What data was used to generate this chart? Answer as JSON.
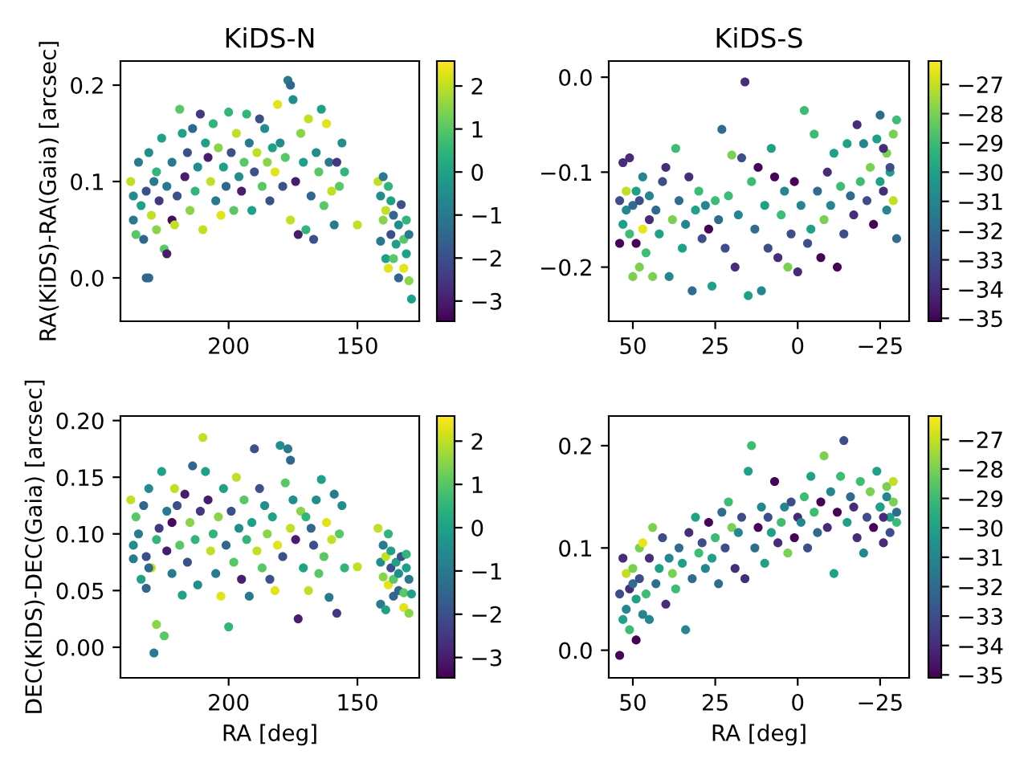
{
  "chart_data": [
    {
      "type": "scatter",
      "title": "KiDS-N",
      "ylabel": "RA(KiDS)-RA(Gaia) [arcsec]",
      "tick_labels": true,
      "xlim": [
        242,
        126
      ],
      "xticks": [
        200,
        150
      ],
      "ylim": [
        -0.045,
        0.225
      ],
      "yticks": [
        {
          "value": 0,
          "label": "0.0"
        },
        0.1,
        0.2
      ],
      "clim": [
        -3.47,
        2.58
      ],
      "cticks": [
        {
          "value": -3,
          "label": "−3"
        },
        {
          "value": -2,
          "label": "−2"
        },
        {
          "value": -1,
          "label": "−1"
        },
        0,
        1,
        2
      ],
      "x": [
        238,
        237,
        237,
        236,
        235,
        234,
        233,
        232,
        231,
        230,
        229,
        228,
        228,
        227,
        226,
        225,
        224,
        224,
        232,
        231,
        222,
        222,
        221,
        220,
        219,
        218,
        217,
        216,
        215,
        214,
        213,
        212,
        211,
        210,
        209,
        208,
        207,
        206,
        205,
        204,
        203,
        202,
        201,
        200,
        199,
        198,
        197,
        196,
        195,
        194,
        193,
        192,
        191,
        190,
        189,
        188,
        187,
        186,
        185,
        184,
        183,
        182,
        181,
        180,
        179,
        178,
        177,
        176,
        176,
        175,
        174,
        173,
        172,
        171,
        170,
        169,
        168,
        167,
        166,
        165,
        164,
        163,
        162,
        161,
        160,
        159,
        158,
        157,
        156,
        155,
        150,
        142,
        141,
        141,
        140,
        140,
        139,
        139,
        138,
        138,
        137,
        137,
        136,
        136,
        135,
        134,
        134,
        133,
        132,
        132,
        131,
        130,
        130,
        129,
        131
      ],
      "values": [
        0.1,
        0.085,
        0.06,
        0.045,
        0.12,
        0.075,
        0.04,
        0.09,
        0.13,
        0.065,
        0.1,
        0.05,
        0.11,
        0.08,
        0.145,
        0.03,
        0.095,
        0.025,
        0.0,
        0.0,
        0.06,
        0.12,
        0.055,
        0.085,
        0.175,
        0.15,
        0.105,
        0.13,
        0.07,
        0.155,
        0.09,
        0.115,
        0.17,
        0.05,
        0.14,
        0.125,
        0.1,
        0.16,
        0.08,
        0.135,
        0.065,
        0.115,
        0.095,
        0.172,
        0.13,
        0.07,
        0.15,
        0.105,
        0.09,
        0.12,
        0.17,
        0.14,
        0.07,
        0.11,
        0.13,
        0.165,
        0.095,
        0.155,
        0.12,
        0.08,
        0.135,
        0.11,
        0.18,
        0.14,
        0.095,
        0.125,
        0.205,
        0.2,
        0.06,
        0.185,
        0.1,
        0.045,
        0.15,
        0.12,
        0.05,
        0.165,
        0.085,
        0.04,
        0.13,
        0.11,
        0.175,
        0.075,
        0.16,
        0.12,
        0.09,
        0.055,
        0.12,
        0.095,
        0.14,
        0.11,
        0.055,
        0.1,
        0.085,
        0.038,
        0.105,
        0.06,
        0.02,
        0.07,
        0.01,
        0.095,
        0.045,
        0.08,
        0.065,
        0.02,
        0.035,
        0.055,
        0.0,
        0.076,
        0.04,
        0.01,
        0.025,
        -0.003,
        0.045,
        -0.022,
        0.06
      ],
      "cvalues": [
        2,
        -0.5,
        -1,
        1,
        -1,
        0,
        -1.5,
        -2,
        -0.5,
        2,
        -1,
        1.5,
        0.5,
        -2.5,
        0,
        1,
        -1,
        -3,
        -1.5,
        -1.5,
        -3.3,
        -1,
        2,
        -2,
        1,
        0,
        -3,
        -2,
        1.5,
        -1.5,
        0.5,
        -0.5,
        -2.5,
        2,
        0,
        -3,
        2,
        0.5,
        -1,
        1.5,
        2.3,
        0,
        -1.5,
        0.5,
        -2,
        1,
        2,
        -0.5,
        -3,
        1,
        0.5,
        -1,
        0,
        -2,
        2,
        -2,
        1,
        -0.5,
        1.5,
        -2,
        0,
        2.3,
        2.3,
        -0.5,
        -2,
        1,
        -1,
        -1.5,
        2,
        -0.5,
        -3,
        -3,
        1.5,
        0,
        0.5,
        2,
        -1.5,
        -2,
        -0.5,
        1,
        0,
        1,
        2.3,
        -1,
        2,
        -1,
        -2.5,
        1,
        -0.5,
        0.5,
        2,
        2,
        -0.5,
        -1,
        -1,
        1.5,
        0,
        2,
        2.3,
        0.5,
        -2,
        0,
        -1.5,
        1,
        0,
        -0.5,
        -1.5,
        -2,
        1,
        2.3,
        0,
        1.5,
        -1,
        0,
        0.5
      ]
    },
    {
      "type": "scatter",
      "title": "KiDS-S",
      "xlim": [
        57.3,
        -33.8
      ],
      "xticks": [
        50,
        25,
        0,
        {
          "value": -25,
          "label": "−25"
        }
      ],
      "ylim": [
        -0.257,
        0.017
      ],
      "yticks": [
        {
          "value": 0,
          "label": "0.0"
        },
        {
          "value": -0.1,
          "label": "−0.1"
        },
        {
          "value": -0.2,
          "label": "−0.2"
        }
      ],
      "clim": [
        -35.1,
        -26.2
      ],
      "cticks": [
        {
          "value": -35,
          "label": "−35"
        },
        {
          "value": -34,
          "label": "−34"
        },
        {
          "value": -33,
          "label": "−33"
        },
        {
          "value": -32,
          "label": "−32"
        },
        {
          "value": -31,
          "label": "−31"
        },
        {
          "value": -30,
          "label": "−30"
        },
        {
          "value": -29,
          "label": "−29"
        },
        {
          "value": -28,
          "label": "−28"
        },
        {
          "value": -27,
          "label": "−27"
        }
      ],
      "x": [
        54,
        54,
        53,
        53,
        52,
        52,
        51,
        51,
        50,
        50,
        49,
        49,
        48,
        48,
        47,
        47,
        46,
        45,
        45,
        44,
        43,
        42,
        41,
        40,
        39,
        38,
        37,
        36,
        35,
        34,
        33,
        32,
        31,
        30,
        29,
        28,
        27,
        26,
        25,
        24,
        23,
        22,
        21,
        20,
        19,
        18,
        17,
        16,
        15,
        14,
        13,
        12,
        11,
        10,
        9,
        8,
        7,
        6,
        5,
        4,
        3,
        2,
        1,
        0,
        -1,
        -2,
        -3,
        -4,
        -5,
        -6,
        -7,
        -8,
        -9,
        -10,
        -11,
        -12,
        -13,
        -14,
        -15,
        -16,
        -17,
        -18,
        -19,
        -20,
        -21,
        -22,
        -23,
        -24,
        -25,
        -26,
        -27,
        -28,
        -29,
        -30,
        -30,
        -29,
        -28,
        -27,
        -26,
        -25
      ],
      "values": [
        -0.13,
        -0.175,
        -0.09,
        -0.155,
        -0.12,
        -0.14,
        -0.085,
        -0.165,
        -0.21,
        -0.135,
        -0.12,
        -0.175,
        -0.2,
        -0.13,
        -0.105,
        -0.16,
        -0.185,
        -0.15,
        -0.125,
        -0.21,
        -0.14,
        -0.165,
        -0.11,
        -0.095,
        -0.21,
        -0.15,
        -0.075,
        -0.13,
        -0.18,
        -0.155,
        -0.105,
        -0.225,
        -0.14,
        -0.12,
        -0.17,
        -0.135,
        -0.16,
        -0.22,
        -0.13,
        -0.15,
        -0.055,
        -0.18,
        -0.125,
        -0.082,
        -0.2,
        -0.145,
        -0.085,
        -0.005,
        -0.23,
        -0.11,
        -0.16,
        -0.095,
        -0.225,
        -0.135,
        -0.18,
        -0.075,
        -0.105,
        -0.19,
        -0.145,
        -0.12,
        -0.2,
        -0.165,
        -0.11,
        -0.205,
        -0.135,
        -0.035,
        -0.175,
        -0.16,
        -0.06,
        -0.12,
        -0.19,
        -0.15,
        -0.1,
        -0.135,
        -0.08,
        -0.2,
        -0.115,
        -0.165,
        -0.07,
        -0.125,
        -0.145,
        -0.05,
        -0.11,
        -0.07,
        -0.13,
        -0.095,
        -0.155,
        -0.065,
        -0.04,
        -0.12,
        -0.08,
        -0.1,
        -0.06,
        -0.045,
        -0.17,
        -0.13,
        -0.095,
        -0.14,
        -0.075,
        -0.11
      ],
      "cvalues": [
        -33,
        -35,
        -34,
        -30,
        -27,
        -31,
        -34,
        -29,
        -28,
        -32,
        -30,
        -35,
        -28,
        -33,
        -31,
        -26.5,
        -29,
        -34,
        -31,
        -28,
        -32,
        -30,
        -33,
        -34,
        -31,
        -28,
        -29,
        -32,
        -30,
        -31,
        -34,
        -32,
        -30,
        -29,
        -33,
        -31,
        -35,
        -30,
        -29,
        -32,
        -32,
        -33,
        -29,
        -28,
        -34,
        -31,
        -33,
        -34,
        -30,
        -29,
        -32,
        -35,
        -31,
        -30,
        -33,
        -30,
        -35,
        -34,
        -29,
        -31,
        -28,
        -33,
        -35,
        -34,
        -31,
        -29,
        -33,
        -30,
        -29,
        -32,
        -35,
        -28,
        -34,
        -31,
        -30,
        -35,
        -29,
        -33,
        -30,
        -32,
        -34,
        -34,
        -29,
        -31,
        -33,
        -28,
        -35,
        -30,
        -32,
        -34,
        -28,
        -30,
        -28,
        -29,
        -32,
        -27,
        -33,
        -31,
        -34,
        -30
      ]
    },
    {
      "type": "scatter",
      "xlabel": "RA [deg]",
      "ylabel": "DEC(KiDS)-DEC(Gaia) [arcsec]",
      "xlim": [
        242,
        126
      ],
      "xticks": [
        200,
        150
      ],
      "ylim": [
        -0.027,
        0.204
      ],
      "yticks": [
        {
          "value": 0,
          "label": "0.00"
        },
        0.05,
        {
          "value": 0.1,
          "label": "0.10"
        },
        0.15,
        {
          "value": 0.2,
          "label": "0.20"
        }
      ],
      "clim": [
        -3.47,
        2.58
      ],
      "cticks": [
        {
          "value": -3,
          "label": "−3"
        },
        {
          "value": -2,
          "label": "−2"
        },
        {
          "value": -1,
          "label": "−1"
        },
        0,
        1,
        2
      ],
      "x": [
        238,
        237,
        237,
        236,
        235,
        234,
        233,
        232,
        231,
        230,
        229,
        228,
        228,
        227,
        226,
        225,
        224,
        224,
        232,
        231,
        222,
        222,
        221,
        220,
        219,
        218,
        217,
        216,
        215,
        214,
        213,
        212,
        211,
        210,
        209,
        208,
        207,
        206,
        205,
        204,
        203,
        202,
        201,
        200,
        199,
        198,
        197,
        196,
        195,
        194,
        193,
        192,
        191,
        190,
        189,
        188,
        187,
        186,
        185,
        184,
        183,
        182,
        181,
        180,
        179,
        178,
        177,
        176,
        176,
        175,
        174,
        173,
        172,
        171,
        170,
        169,
        168,
        167,
        166,
        165,
        164,
        163,
        162,
        161,
        160,
        159,
        158,
        157,
        156,
        155,
        150,
        142,
        141,
        141,
        140,
        140,
        139,
        139,
        138,
        138,
        137,
        137,
        136,
        136,
        135,
        134,
        134,
        133,
        132,
        132,
        131,
        130,
        130,
        129,
        131
      ],
      "values": [
        0.13,
        0.09,
        0.078,
        0.115,
        0.1,
        0.06,
        0.125,
        0.08,
        0.14,
        0.07,
        -0.005,
        0.02,
        0.095,
        0.105,
        0.155,
        0.01,
        0.12,
        0.085,
        0.052,
        0.07,
        0.11,
        0.065,
        0.14,
        0.125,
        0.09,
        0.046,
        0.135,
        0.075,
        0.11,
        0.16,
        0.095,
        0.055,
        0.12,
        0.185,
        0.155,
        0.13,
        0.085,
        0.1,
        0.065,
        0.115,
        0.045,
        0.14,
        0.09,
        0.018,
        0.12,
        0.075,
        0.15,
        0.105,
        0.06,
        0.13,
        0.095,
        0.045,
        0.11,
        0.175,
        0.085,
        0.14,
        0.07,
        0.125,
        0.1,
        0.06,
        0.115,
        0.05,
        0.09,
        0.178,
        0.08,
        0.145,
        0.175,
        0.165,
        0.105,
        0.13,
        0.095,
        0.025,
        0.12,
        0.07,
        0.115,
        0.05,
        0.105,
        0.09,
        0.13,
        0.065,
        0.148,
        0.08,
        0.11,
        0.044,
        0.095,
        0.135,
        0.03,
        0.1,
        0.125,
        0.07,
        0.071,
        0.105,
        0.075,
        0.038,
        0.09,
        0.062,
        0.033,
        0.08,
        0.055,
        0.1,
        0.07,
        0.085,
        0.045,
        0.06,
        0.075,
        0.065,
        0.05,
        0.08,
        0.048,
        0.035,
        0.07,
        0.03,
        0.06,
        0.047,
        0.082
      ],
      "cvalues": [
        2,
        -0.5,
        -1,
        1,
        -1,
        0,
        -1.5,
        -2,
        -0.5,
        2,
        -1,
        1.5,
        0.5,
        -2.5,
        0,
        1,
        -1,
        -3,
        -1.5,
        -1.5,
        -3.3,
        -1,
        2,
        -2,
        1,
        0,
        -3,
        -2,
        1.5,
        -1.5,
        0.5,
        -0.5,
        -2.5,
        2,
        0,
        -3,
        2,
        0.5,
        -1,
        1.5,
        2.3,
        0,
        -1.5,
        0.5,
        -2,
        1,
        2,
        -0.5,
        -3,
        1,
        0.5,
        -1,
        0,
        -2,
        2,
        -2,
        1,
        -0.5,
        1.5,
        -2,
        0,
        2.3,
        2.3,
        -0.5,
        -2,
        1,
        -1,
        -1.5,
        2,
        -0.5,
        -3,
        -3,
        1.5,
        0,
        0.5,
        2,
        -1.5,
        -2,
        -0.5,
        1,
        0,
        1,
        2.3,
        -1,
        2,
        -1,
        -2.5,
        1,
        -0.5,
        0.5,
        2,
        2,
        -0.5,
        -1,
        -1,
        1.5,
        0,
        2,
        2.3,
        0.5,
        -2,
        0,
        -1.5,
        1,
        0,
        -0.5,
        -1.5,
        -2,
        1,
        2.3,
        0,
        1.5,
        -1,
        0,
        0.5
      ]
    },
    {
      "type": "scatter",
      "xlabel": "RA [deg]",
      "xlim": [
        57.3,
        -33.8
      ],
      "xticks": [
        50,
        25,
        0,
        {
          "value": -25,
          "label": "−25"
        }
      ],
      "ylim": [
        -0.027,
        0.229
      ],
      "yticks": [
        {
          "value": 0,
          "label": "0.0"
        },
        0.1,
        0.2
      ],
      "clim": [
        -35.1,
        -26.2
      ],
      "cticks": [
        {
          "value": -35,
          "label": "−35"
        },
        {
          "value": -34,
          "label": "−34"
        },
        {
          "value": -33,
          "label": "−33"
        },
        {
          "value": -32,
          "label": "−32"
        },
        {
          "value": -31,
          "label": "−31"
        },
        {
          "value": -30,
          "label": "−30"
        },
        {
          "value": -29,
          "label": "−29"
        },
        {
          "value": -28,
          "label": "−28"
        },
        {
          "value": -27,
          "label": "−27"
        }
      ],
      "x": [
        54,
        54,
        53,
        53,
        52,
        52,
        51,
        51,
        50,
        50,
        49,
        49,
        48,
        48,
        47,
        47,
        46,
        45,
        45,
        44,
        43,
        42,
        41,
        40,
        39,
        38,
        37,
        36,
        35,
        34,
        33,
        32,
        31,
        30,
        29,
        28,
        27,
        26,
        25,
        24,
        23,
        22,
        21,
        20,
        19,
        18,
        17,
        16,
        15,
        14,
        13,
        12,
        11,
        10,
        9,
        8,
        7,
        6,
        5,
        4,
        3,
        2,
        1,
        0,
        -1,
        -2,
        -3,
        -4,
        -5,
        -6,
        -7,
        -8,
        -9,
        -10,
        -11,
        -12,
        -13,
        -14,
        -15,
        -16,
        -17,
        -18,
        -19,
        -20,
        -21,
        -22,
        -23,
        -24,
        -25,
        -26,
        -27,
        -28,
        -29,
        -30,
        -30,
        -29,
        -28,
        -27,
        -26,
        -25
      ],
      "values": [
        0.055,
        -0.005,
        0.09,
        0.03,
        0.075,
        0.04,
        0.06,
        0.02,
        0.08,
        0.065,
        0.05,
        0.01,
        0.1,
        0.07,
        0.035,
        0.105,
        0.055,
        0.09,
        0.03,
        0.12,
        0.065,
        0.08,
        0.11,
        0.045,
        0.09,
        0.075,
        0.06,
        0.1,
        0.085,
        0.02,
        0.115,
        0.07,
        0.13,
        0.095,
        0.105,
        0.08,
        0.125,
        0.09,
        0.11,
        0.065,
        0.135,
        0.1,
        0.145,
        0.12,
        0.08,
        0.115,
        0.13,
        0.07,
        0.175,
        0.2,
        0.1,
        0.12,
        0.14,
        0.085,
        0.13,
        0.115,
        0.165,
        0.105,
        0.125,
        0.14,
        0.095,
        0.145,
        0.11,
        0.13,
        0.125,
        0.15,
        0.1,
        0.17,
        0.135,
        0.115,
        0.145,
        0.19,
        0.12,
        0.155,
        0.075,
        0.135,
        0.17,
        0.205,
        0.125,
        0.15,
        0.14,
        0.11,
        0.165,
        0.095,
        0.13,
        0.155,
        0.12,
        0.175,
        0.14,
        0.105,
        0.16,
        0.13,
        0.145,
        0.125,
        0.135,
        0.165,
        0.115,
        0.15,
        0.13,
        0.14
      ],
      "cvalues": [
        -33,
        -35,
        -34,
        -30,
        -27,
        -31,
        -34,
        -29,
        -28,
        -32,
        -30,
        -35,
        -28,
        -33,
        -31,
        -26.5,
        -29,
        -34,
        -31,
        -28,
        -32,
        -30,
        -33,
        -34,
        -31,
        -28,
        -29,
        -32,
        -30,
        -31,
        -34,
        -32,
        -30,
        -29,
        -33,
        -31,
        -35,
        -30,
        -29,
        -32,
        -32,
        -33,
        -29,
        -28,
        -34,
        -31,
        -33,
        -34,
        -30,
        -29,
        -32,
        -35,
        -31,
        -30,
        -33,
        -30,
        -35,
        -34,
        -29,
        -31,
        -28,
        -33,
        -35,
        -34,
        -31,
        -29,
        -33,
        -30,
        -29,
        -32,
        -35,
        -28,
        -34,
        -31,
        -30,
        -35,
        -29,
        -33,
        -30,
        -32,
        -34,
        -34,
        -29,
        -31,
        -33,
        -28,
        -35,
        -30,
        -32,
        -34,
        -28,
        -30,
        -28,
        -29,
        -32,
        -27,
        -33,
        -31,
        -34,
        -30
      ]
    }
  ]
}
